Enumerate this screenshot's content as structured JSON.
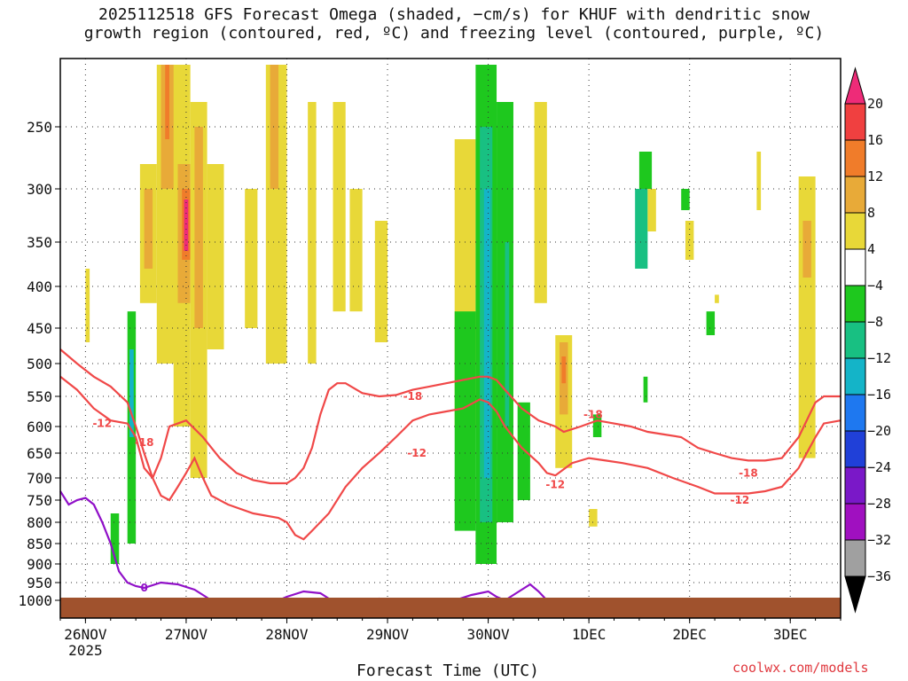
{
  "title_lines": [
    "2025112518 GFS Forecast Omega (shaded, −cm/s) for KHUF with dendritic snow",
    "growth region (contoured, red, ºC) and freezing level (contoured, purple, ºC)"
  ],
  "credit": "coolwx.com/models",
  "chart_data": {
    "type": "heatmap",
    "xlabel": "Forecast Time (UTC)",
    "ylabel": "",
    "x_range_hours": [
      -6,
      180
    ],
    "y_axis": "pressure (hPa), inverted",
    "x_ticks": [
      {
        "hour": 0,
        "label": "26NOV",
        "sub": "2025"
      },
      {
        "hour": 24,
        "label": "27NOV"
      },
      {
        "hour": 48,
        "label": "28NOV"
      },
      {
        "hour": 72,
        "label": "29NOV"
      },
      {
        "hour": 96,
        "label": "30NOV"
      },
      {
        "hour": 120,
        "label": "1DEC"
      },
      {
        "hour": 144,
        "label": "2DEC"
      },
      {
        "hour": 168,
        "label": "3DEC"
      }
    ],
    "y_ticks": [
      250,
      300,
      350,
      400,
      450,
      500,
      550,
      600,
      650,
      700,
      750,
      800,
      850,
      900,
      950,
      1000
    ],
    "grid": true,
    "colorbar": {
      "labels": [
        "20",
        "16",
        "12",
        "8",
        "4",
        "−4",
        "−8",
        "−12",
        "−16",
        "−20",
        "−24",
        "−28",
        "−32",
        "−36"
      ],
      "colors": [
        "#ee2b78",
        "#f04040",
        "#f07c2a",
        "#e8aa38",
        "#e8d838",
        "#ffffff",
        "#1ec81e",
        "#18c082",
        "#14b4c8",
        "#1e78f0",
        "#2040d8",
        "#7a18c8",
        "#a010c0",
        "#a0a0a0",
        "#000000"
      ]
    },
    "omega_cells": [
      {
        "x0": 21,
        "x1": 25,
        "p0": 200,
        "p1": 600,
        "class": "4"
      },
      {
        "x0": 22,
        "x1": 25,
        "p0": 280,
        "p1": 420,
        "class": "8"
      },
      {
        "x0": 23,
        "x1": 25,
        "p0": 300,
        "p1": 370,
        "class": "12"
      },
      {
        "x0": 23.5,
        "x1": 24.5,
        "p0": 310,
        "p1": 360,
        "class": "20"
      },
      {
        "x0": 17,
        "x1": 22,
        "p0": 200,
        "p1": 500,
        "class": "4"
      },
      {
        "x0": 18,
        "x1": 21,
        "p0": 200,
        "p1": 300,
        "class": "8"
      },
      {
        "x0": 19,
        "x1": 20,
        "p0": 200,
        "p1": 260,
        "class": "12"
      },
      {
        "x0": 13,
        "x1": 17,
        "p0": 280,
        "p1": 420,
        "class": "4"
      },
      {
        "x0": 14,
        "x1": 16,
        "p0": 300,
        "p1": 380,
        "class": "8"
      },
      {
        "x0": 25,
        "x1": 29,
        "p0": 230,
        "p1": 700,
        "class": "4"
      },
      {
        "x0": 26,
        "x1": 28,
        "p0": 250,
        "p1": 450,
        "class": "8"
      },
      {
        "x0": 29,
        "x1": 33,
        "p0": 280,
        "p1": 480,
        "class": "4"
      },
      {
        "x0": 43,
        "x1": 48,
        "p0": 200,
        "p1": 500,
        "class": "4"
      },
      {
        "x0": 44,
        "x1": 46,
        "p0": 200,
        "p1": 300,
        "class": "8"
      },
      {
        "x0": 38,
        "x1": 41,
        "p0": 300,
        "p1": 450,
        "class": "4"
      },
      {
        "x0": 53,
        "x1": 55,
        "p0": 230,
        "p1": 500,
        "class": "4"
      },
      {
        "x0": 59,
        "x1": 62,
        "p0": 230,
        "p1": 430,
        "class": "4"
      },
      {
        "x0": 63,
        "x1": 66,
        "p0": 300,
        "p1": 430,
        "class": "4"
      },
      {
        "x0": 69,
        "x1": 72,
        "p0": 330,
        "p1": 470,
        "class": "4"
      },
      {
        "x0": 10,
        "x1": 12,
        "p0": 430,
        "p1": 850,
        "class": "-4"
      },
      {
        "x0": 10.5,
        "x1": 11.5,
        "p0": 480,
        "p1": 620,
        "class": "-12"
      },
      {
        "x0": 6,
        "x1": 8,
        "p0": 780,
        "p1": 900,
        "class": "-4"
      },
      {
        "x0": 88,
        "x1": 93,
        "p0": 260,
        "p1": 600,
        "class": "4"
      },
      {
        "x0": 88,
        "x1": 93,
        "p0": 430,
        "p1": 820,
        "class": "-4"
      },
      {
        "x0": 93,
        "x1": 98,
        "p0": 200,
        "p1": 900,
        "class": "-4"
      },
      {
        "x0": 94,
        "x1": 97,
        "p0": 250,
        "p1": 800,
        "class": "-8"
      },
      {
        "x0": 95,
        "x1": 96.5,
        "p0": 300,
        "p1": 700,
        "class": "-12"
      },
      {
        "x0": 98,
        "x1": 102,
        "p0": 230,
        "p1": 800,
        "class": "-4"
      },
      {
        "x0": 100,
        "x1": 101,
        "p0": 350,
        "p1": 600,
        "class": "-8"
      },
      {
        "x0": 103,
        "x1": 106,
        "p0": 560,
        "p1": 750,
        "class": "-4"
      },
      {
        "x0": 112,
        "x1": 116,
        "p0": 460,
        "p1": 680,
        "class": "4"
      },
      {
        "x0": 113,
        "x1": 115,
        "p0": 470,
        "p1": 580,
        "class": "8"
      },
      {
        "x0": 113.5,
        "x1": 114.5,
        "p0": 490,
        "p1": 530,
        "class": "12"
      },
      {
        "x0": 107,
        "x1": 110,
        "p0": 230,
        "p1": 420,
        "class": "4"
      },
      {
        "x0": 121,
        "x1": 123,
        "p0": 580,
        "p1": 620,
        "class": "-4"
      },
      {
        "x0": 132,
        "x1": 135,
        "p0": 270,
        "p1": 300,
        "class": "-4"
      },
      {
        "x0": 131,
        "x1": 134,
        "p0": 300,
        "p1": 380,
        "class": "-8"
      },
      {
        "x0": 134,
        "x1": 136,
        "p0": 300,
        "p1": 340,
        "class": "4"
      },
      {
        "x0": 133,
        "x1": 134,
        "p0": 520,
        "p1": 560,
        "class": "-4"
      },
      {
        "x0": 142,
        "x1": 144,
        "p0": 300,
        "p1": 320,
        "class": "-4"
      },
      {
        "x0": 143,
        "x1": 145,
        "p0": 330,
        "p1": 370,
        "class": "4"
      },
      {
        "x0": 148,
        "x1": 150,
        "p0": 430,
        "p1": 460,
        "class": "-4"
      },
      {
        "x0": 150,
        "x1": 151,
        "p0": 410,
        "p1": 420,
        "class": "4"
      },
      {
        "x0": 160,
        "x1": 161,
        "p0": 270,
        "p1": 320,
        "class": "4"
      },
      {
        "x0": 170,
        "x1": 174,
        "p0": 290,
        "p1": 660,
        "class": "4"
      },
      {
        "x0": 171,
        "x1": 173,
        "p0": 330,
        "p1": 390,
        "class": "8"
      },
      {
        "x0": 120,
        "x1": 122,
        "p0": 770,
        "p1": 810,
        "class": "4"
      },
      {
        "x0": 0,
        "x1": 1,
        "p0": 380,
        "p1": 470,
        "class": "4"
      }
    ],
    "contours": [
      {
        "name": "-18",
        "color": "#f04848",
        "points": [
          [
            -6,
            480
          ],
          [
            -2,
            500
          ],
          [
            2,
            520
          ],
          [
            6,
            535
          ],
          [
            10,
            560
          ],
          [
            12,
            600
          ],
          [
            14,
            650
          ],
          [
            16,
            700
          ],
          [
            18,
            740
          ],
          [
            20,
            750
          ],
          [
            22,
            720
          ],
          [
            24,
            690
          ],
          [
            26,
            660
          ],
          [
            28,
            700
          ],
          [
            30,
            740
          ],
          [
            34,
            760
          ],
          [
            40,
            780
          ],
          [
            46,
            790
          ],
          [
            48,
            800
          ],
          [
            50,
            830
          ],
          [
            52,
            840
          ],
          [
            54,
            820
          ],
          [
            58,
            780
          ],
          [
            62,
            720
          ],
          [
            66,
            680
          ],
          [
            70,
            650
          ],
          [
            74,
            620
          ],
          [
            78,
            590
          ],
          [
            82,
            580
          ],
          [
            86,
            575
          ],
          [
            90,
            570
          ],
          [
            94,
            555
          ],
          [
            96,
            560
          ],
          [
            98,
            575
          ],
          [
            100,
            600
          ],
          [
            104,
            640
          ],
          [
            108,
            670
          ],
          [
            110,
            690
          ],
          [
            112,
            695
          ],
          [
            116,
            670
          ],
          [
            120,
            660
          ],
          [
            124,
            665
          ],
          [
            128,
            670
          ],
          [
            134,
            680
          ],
          [
            140,
            700
          ],
          [
            146,
            720
          ],
          [
            150,
            735
          ],
          [
            154,
            735
          ],
          [
            158,
            735
          ],
          [
            162,
            730
          ],
          [
            166,
            720
          ],
          [
            170,
            680
          ],
          [
            174,
            620
          ],
          [
            176,
            595
          ],
          [
            180,
            590
          ]
        ]
      },
      {
        "name": "-12",
        "color": "#f04848",
        "points": [
          [
            -6,
            520
          ],
          [
            -2,
            540
          ],
          [
            2,
            570
          ],
          [
            6,
            590
          ],
          [
            10,
            595
          ],
          [
            12,
            620
          ],
          [
            14,
            680
          ],
          [
            16,
            700
          ],
          [
            18,
            660
          ],
          [
            20,
            600
          ],
          [
            24,
            590
          ],
          [
            28,
            620
          ],
          [
            32,
            660
          ],
          [
            36,
            690
          ],
          [
            40,
            705
          ],
          [
            44,
            712
          ],
          [
            48,
            712
          ],
          [
            50,
            700
          ],
          [
            52,
            680
          ],
          [
            54,
            640
          ],
          [
            56,
            580
          ],
          [
            58,
            540
          ],
          [
            60,
            530
          ],
          [
            62,
            530
          ],
          [
            66,
            545
          ],
          [
            70,
            550
          ],
          [
            74,
            548
          ],
          [
            78,
            540
          ],
          [
            82,
            535
          ],
          [
            86,
            530
          ],
          [
            90,
            525
          ],
          [
            94,
            520
          ],
          [
            96,
            520
          ],
          [
            98,
            525
          ],
          [
            100,
            540
          ],
          [
            104,
            570
          ],
          [
            108,
            590
          ],
          [
            112,
            600
          ],
          [
            114,
            610
          ],
          [
            118,
            600
          ],
          [
            122,
            590
          ],
          [
            126,
            595
          ],
          [
            130,
            600
          ],
          [
            134,
            610
          ],
          [
            138,
            615
          ],
          [
            142,
            620
          ],
          [
            146,
            640
          ],
          [
            150,
            650
          ],
          [
            154,
            660
          ],
          [
            158,
            665
          ],
          [
            162,
            665
          ],
          [
            166,
            660
          ],
          [
            170,
            620
          ],
          [
            174,
            560
          ],
          [
            176,
            550
          ],
          [
            180,
            550
          ]
        ]
      },
      {
        "name": "0",
        "color": "#9010c8",
        "points": [
          [
            -6,
            730
          ],
          [
            -4,
            760
          ],
          [
            -2,
            750
          ],
          [
            0,
            745
          ],
          [
            2,
            760
          ],
          [
            4,
            800
          ],
          [
            6,
            850
          ],
          [
            8,
            920
          ],
          [
            10,
            950
          ],
          [
            12,
            960
          ],
          [
            14,
            965
          ],
          [
            18,
            950
          ],
          [
            22,
            955
          ],
          [
            26,
            970
          ],
          [
            28,
            985
          ],
          [
            30,
            1000
          ]
        ]
      },
      {
        "name": "0b",
        "color": "#9010c8",
        "points": [
          [
            46,
            1000
          ],
          [
            48,
            990
          ],
          [
            52,
            975
          ],
          [
            56,
            980
          ],
          [
            58,
            995
          ],
          [
            60,
            1000
          ]
        ]
      },
      {
        "name": "0c",
        "color": "#9010c8",
        "points": [
          [
            67,
            1000
          ],
          [
            70,
            995
          ],
          [
            72,
            1000
          ]
        ]
      },
      {
        "name": "0d",
        "color": "#9010c8",
        "points": [
          [
            88,
            1000
          ],
          [
            92,
            985
          ],
          [
            96,
            975
          ],
          [
            98,
            990
          ],
          [
            100,
            1000
          ]
        ]
      },
      {
        "name": "0e",
        "color": "#9010c8",
        "points": [
          [
            100,
            1000
          ],
          [
            104,
            970
          ],
          [
            106,
            955
          ],
          [
            108,
            975
          ],
          [
            110,
            1000
          ]
        ]
      }
    ],
    "contour_labels": [
      {
        "text": "-12",
        "hour": 4,
        "p": 595,
        "color": "#f04848"
      },
      {
        "text": "-18",
        "hour": 14,
        "p": 630,
        "color": "#f04848"
      },
      {
        "text": "-18",
        "hour": 78,
        "p": 550,
        "color": "#f04848"
      },
      {
        "text": "-12",
        "hour": 79,
        "p": 650,
        "color": "#f04848"
      },
      {
        "text": "-18",
        "hour": 121,
        "p": 580,
        "color": "#f04848"
      },
      {
        "text": "-12",
        "hour": 112,
        "p": 715,
        "color": "#f04848"
      },
      {
        "text": "-18",
        "hour": 158,
        "p": 690,
        "color": "#f04848"
      },
      {
        "text": "-12",
        "hour": 156,
        "p": 750,
        "color": "#f04848"
      },
      {
        "text": "0",
        "hour": 14,
        "p": 965,
        "color": "#9010c8"
      }
    ],
    "terrain_color": "#a0522d"
  }
}
